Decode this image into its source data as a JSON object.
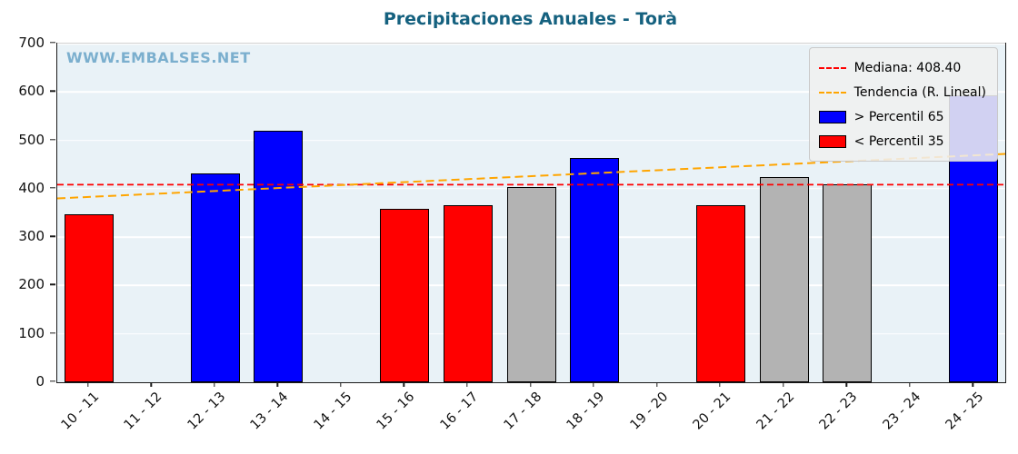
{
  "title": "Precipitaciones Anuales - Torà",
  "watermark": "WWW.EMBALSES.NET",
  "colors": {
    "title": "#15617f",
    "watermark": "#7bafce",
    "plot_background": "#e9f2f7",
    "grid": "#ffffff",
    "bar_edge": "#000000"
  },
  "chart_data": {
    "type": "bar",
    "title": "Precipitaciones Anuales - Torà",
    "xlabel": "",
    "ylabel": "",
    "ylim": [
      0,
      700
    ],
    "yticks": [
      0,
      100,
      200,
      300,
      400,
      500,
      600,
      700
    ],
    "grid": true,
    "legend_position": "upper right",
    "categories": [
      "10 - 11",
      "11 - 12",
      "12 - 13",
      "13 - 14",
      "14 - 15",
      "15 - 16",
      "16 - 17",
      "17 - 18",
      "18 - 19",
      "19 - 20",
      "20 - 21",
      "21 - 22",
      "22 - 23",
      "23 - 24",
      "24 - 25"
    ],
    "values": [
      348,
      null,
      432,
      520,
      null,
      358,
      366,
      404,
      463,
      null,
      366,
      424,
      410,
      null,
      593
    ],
    "classes": [
      "below35",
      null,
      "above65",
      "above65",
      null,
      "below35",
      "below35",
      "mid",
      "above65",
      null,
      "below35",
      "mid",
      "mid",
      null,
      "above65"
    ],
    "class_colors": {
      "above65": "#0000ff",
      "below35": "#ff0000",
      "mid": "#b3b3b3"
    },
    "median": {
      "label": "Mediana: 408.40",
      "value": 408.4,
      "color": "#ff0000",
      "style": "dashed"
    },
    "trend": {
      "label": "Tendencia (R. Lineal)",
      "start": 380,
      "end": 472,
      "color": "#ffa500",
      "style": "dashed"
    },
    "legend": [
      {
        "label": "Mediana: 408.40",
        "sample": "dashed-line",
        "color": "#ff0000"
      },
      {
        "label": "Tendencia (R. Lineal)",
        "sample": "dashed-line",
        "color": "#ffa500"
      },
      {
        "label": "> Percentil 65",
        "sample": "patch",
        "color": "#0000ff"
      },
      {
        "label": "< Percentil 35",
        "sample": "patch",
        "color": "#ff0000"
      }
    ]
  }
}
